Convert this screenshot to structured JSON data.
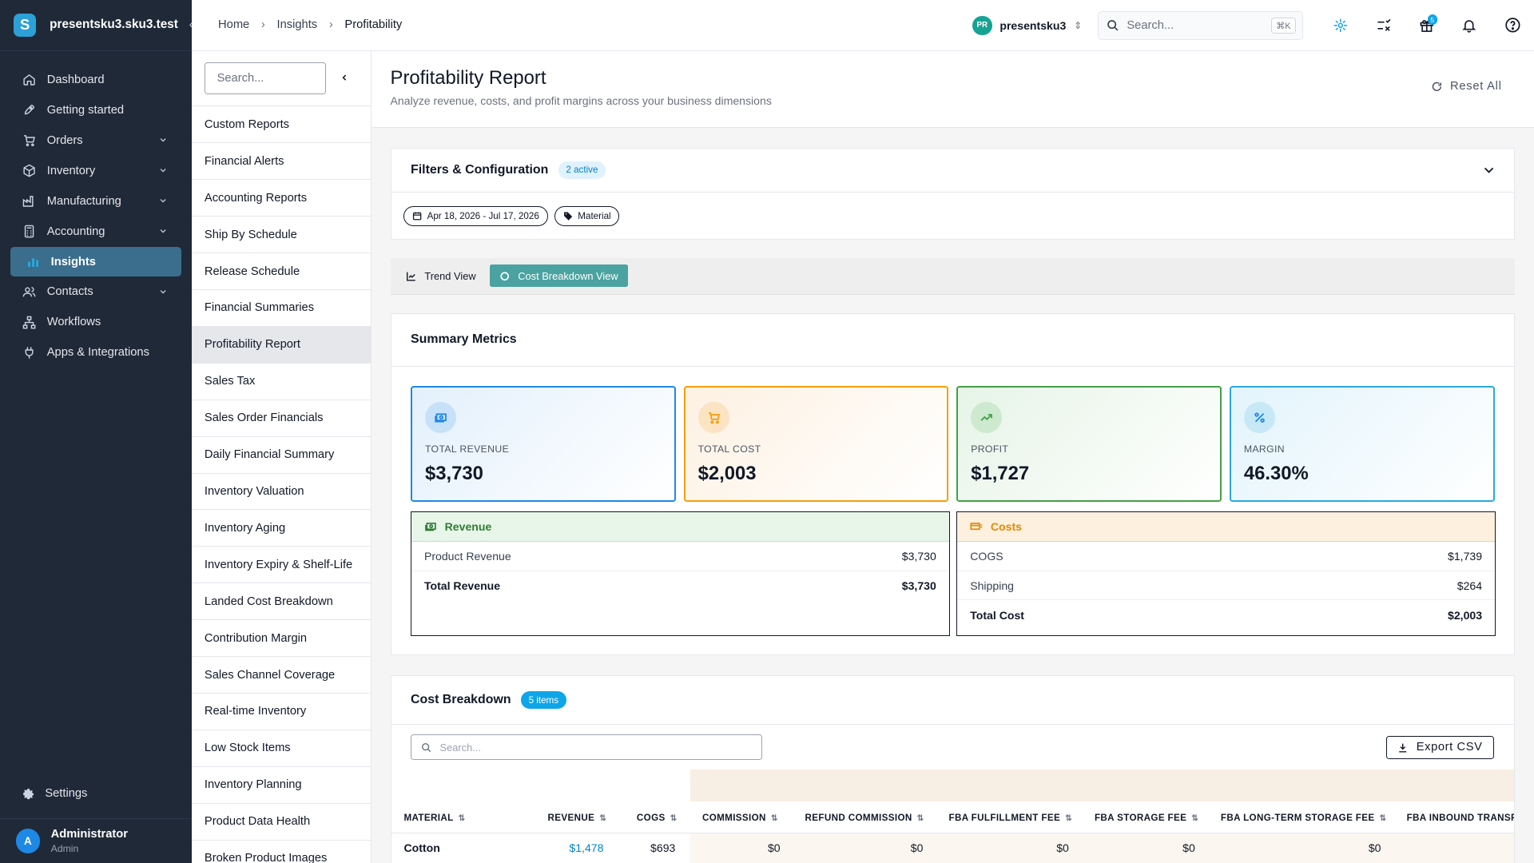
{
  "brand": {
    "name": "presentsku3.sku3.test",
    "logo_letter": "S",
    "collapse": "‹"
  },
  "sidebar": {
    "items": [
      {
        "label": "Dashboard",
        "icon": "home-icon"
      },
      {
        "label": "Getting started",
        "icon": "rocket-icon"
      },
      {
        "label": "Orders",
        "icon": "cart-icon",
        "expandable": true
      },
      {
        "label": "Inventory",
        "icon": "box-icon",
        "expandable": true
      },
      {
        "label": "Manufacturing",
        "icon": "factory-icon",
        "expandable": true
      },
      {
        "label": "Accounting",
        "icon": "calculator-icon",
        "expandable": true
      },
      {
        "label": "Insights",
        "icon": "bar-chart-icon",
        "active": true
      },
      {
        "label": "Contacts",
        "icon": "users-icon",
        "expandable": true
      },
      {
        "label": "Workflows",
        "icon": "workflow-icon"
      },
      {
        "label": "Apps & Integrations",
        "icon": "plug-icon"
      }
    ],
    "settings": "Settings",
    "user": {
      "initial": "A",
      "name": "Administrator",
      "role": "Admin"
    }
  },
  "topbar": {
    "breadcrumbs": [
      "Home",
      "Insights",
      "Profitability"
    ],
    "account": {
      "initials": "PR",
      "name": "presentsku3"
    },
    "search": {
      "placeholder": "Search...",
      "shortcut": "⌘K"
    },
    "gift_badge": "5"
  },
  "subnav": {
    "search_placeholder": "Search...",
    "items": [
      "Custom Reports",
      "Financial Alerts",
      "Accounting Reports",
      "Ship By Schedule",
      "Release Schedule",
      "Financial Summaries",
      "Profitability Report",
      "Sales Tax",
      "Sales Order Financials",
      "Daily Financial Summary",
      "Inventory Valuation",
      "Inventory Aging",
      "Inventory Expiry & Shelf-Life",
      "Landed Cost Breakdown",
      "Contribution Margin",
      "Sales Channel Coverage",
      "Real-time Inventory",
      "Low Stock Items",
      "Inventory Planning",
      "Product Data Health",
      "Broken Product Images"
    ],
    "active": "Profitability Report"
  },
  "page": {
    "title": "Profitability Report",
    "subtitle": "Analyze revenue, costs, and profit margins across your business dimensions",
    "reset": "Reset All"
  },
  "filters": {
    "title": "Filters & Configuration",
    "active_badge": "2 active",
    "chips": [
      "Apr 18, 2026 - Jul 17, 2026",
      "Material"
    ]
  },
  "views": {
    "trend": "Trend View",
    "cost": "Cost Breakdown View",
    "active": "Cost Breakdown View"
  },
  "summary": {
    "title": "Summary Metrics",
    "kpis": [
      {
        "label": "TOTAL REVENUE",
        "value": "$3,730",
        "color": "#1e88e5",
        "icon": "money-icon"
      },
      {
        "label": "TOTAL COST",
        "value": "$2,003",
        "color": "#f59e0b",
        "icon": "cart-icon"
      },
      {
        "label": "PROFIT",
        "value": "$1,727",
        "color": "#43a047",
        "icon": "trending-up-icon"
      },
      {
        "label": "MARGIN",
        "value": "46.30%",
        "color": "#29a9e0",
        "icon": "percent-icon"
      }
    ],
    "revenue": {
      "title": "Revenue",
      "rows": [
        {
          "label": "Product Revenue",
          "value": "$3,730"
        }
      ],
      "total": {
        "label": "Total Revenue",
        "value": "$3,730"
      }
    },
    "costs": {
      "title": "Costs",
      "rows": [
        {
          "label": "COGS",
          "value": "$1,739"
        },
        {
          "label": "Shipping",
          "value": "$264"
        }
      ],
      "total": {
        "label": "Total Cost",
        "value": "$2,003"
      }
    }
  },
  "cost_breakdown": {
    "title": "Cost Breakdown",
    "count_badge": "5 items",
    "search_placeholder": "Search...",
    "export": "Export CSV",
    "columns": [
      "MATERIAL",
      "REVENUE",
      "COGS",
      "COMMISSION",
      "REFUND COMMISSION",
      "FBA FULFILLMENT FEE",
      "FBA STORAGE FEE",
      "FBA LONG-TERM STORAGE FEE",
      "FBA INBOUND TRANSP"
    ],
    "rows": [
      {
        "material": "Cotton",
        "revenue": "$1,478",
        "cogs": "$693",
        "commission": "$0",
        "refund_commission": "$0",
        "fba_fulfillment": "$0",
        "fba_storage": "$0",
        "fba_lt_storage": "$0"
      }
    ]
  }
}
